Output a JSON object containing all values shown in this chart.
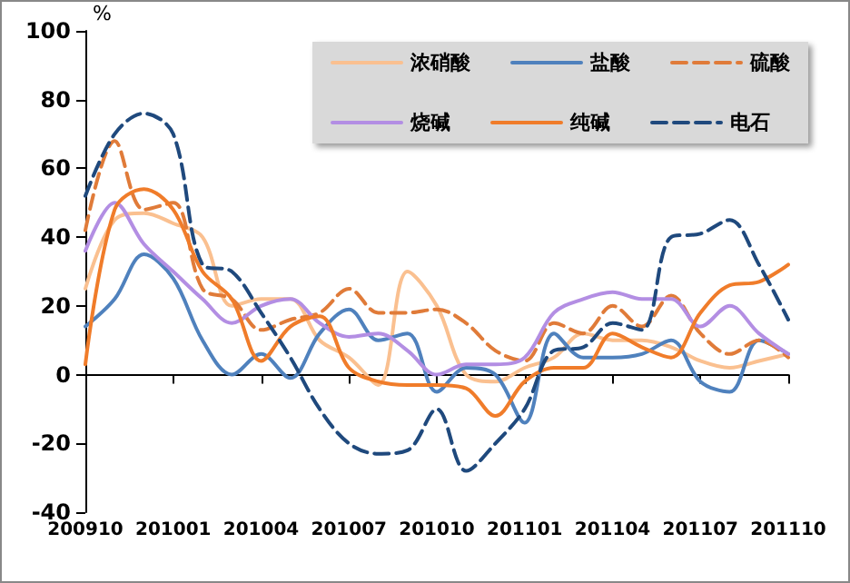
{
  "chart_data": {
    "type": "line",
    "ylabel": "%",
    "categories": [
      "200910",
      null,
      null,
      "201001",
      null,
      null,
      "201004",
      null,
      null,
      "201007",
      null,
      null,
      "201010",
      null,
      null,
      "201101",
      null,
      null,
      "201104",
      null,
      null,
      "201107",
      null,
      null,
      "201110"
    ],
    "ylim": [
      -40,
      100
    ],
    "yticks": [
      -40,
      -20,
      0,
      20,
      40,
      60,
      80,
      100
    ],
    "legend": "top right",
    "marker": "none",
    "series": [
      {
        "name": "浓硝酸",
        "color": "#fac090",
        "line_style": "solid",
        "values": [
          25,
          45,
          47,
          44,
          40,
          20,
          22,
          22,
          10,
          5,
          -3,
          30,
          20,
          0,
          -2,
          2,
          5,
          12,
          10,
          10,
          8,
          4,
          2,
          4,
          6
        ]
      },
      {
        "name": "盐酸",
        "color": "#4f81bd",
        "line_style": "solid",
        "values": [
          14,
          22,
          35,
          28,
          10,
          0,
          6,
          -1,
          12,
          19,
          10,
          12,
          -5,
          2,
          0,
          -14,
          12,
          5,
          5,
          6,
          10,
          -2,
          -5,
          10,
          6
        ]
      },
      {
        "name": "硫酸",
        "color": "#e07b39",
        "line_style": "dashed",
        "values": [
          42,
          68,
          48,
          50,
          25,
          22,
          13,
          16,
          18,
          25,
          18,
          18,
          19,
          15,
          7,
          4,
          15,
          12,
          20,
          14,
          23,
          12,
          6,
          10,
          5
        ]
      },
      {
        "name": "烧碱",
        "color": "#b38ee3",
        "line_style": "solid",
        "values": [
          36,
          50,
          38,
          30,
          22,
          15,
          20,
          22,
          15,
          11,
          12,
          7,
          0,
          3,
          3,
          5,
          18,
          22,
          24,
          22,
          22,
          14,
          20,
          12,
          6
        ]
      },
      {
        "name": "纯碱",
        "color": "#f07c2a",
        "line_style": "solid",
        "values": [
          3,
          48,
          54,
          48,
          30,
          22,
          4,
          14,
          17,
          2,
          -2,
          -3,
          -3,
          -4,
          -12,
          -2,
          2,
          2,
          12,
          8,
          5,
          18,
          26,
          27,
          32
        ]
      },
      {
        "name": "电石",
        "color": "#1f497d",
        "line_style": "dashed",
        "values": [
          52,
          70,
          76,
          70,
          32,
          30,
          18,
          5,
          -10,
          -20,
          -23,
          -22,
          -10,
          -28,
          -20,
          -10,
          7,
          8,
          15,
          13,
          40,
          41,
          45,
          32,
          16
        ]
      }
    ]
  }
}
